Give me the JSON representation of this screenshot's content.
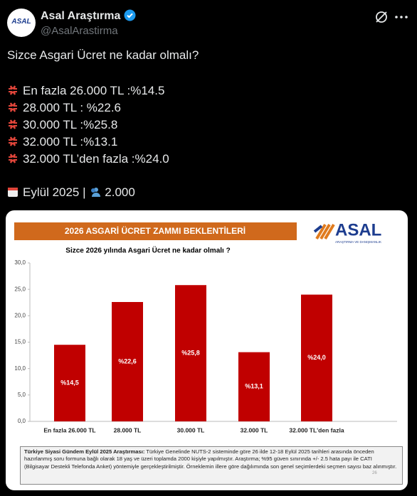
{
  "tweet": {
    "name": "Asal Araştırma",
    "handle": "@AsalArastirma",
    "avatar_text": "ASAL",
    "question": "Sizce Asgari Ücret ne kadar olmalı?",
    "lines": [
      "En fazla 26.000 TL :%14.5",
      "28.000 TL : %22.6",
      "30.000 TL :%25.8",
      "32.000 TL :%13.1",
      "32.000 TL’den fazla :%24.0"
    ],
    "date": "Eylül 2025 |",
    "sample": "2.000"
  },
  "logo": {
    "text": "ASAL",
    "tagline": "ARAŞTIRMA VE DANIŞMANLIK"
  },
  "chart_data": {
    "type": "bar",
    "title": "2026 ASGARİ ÜCRET ZAMMI BEKLENTİLERİ",
    "subtitle": "Sizce 2026 yılında Asgari Ücret ne kadar olmalı ?",
    "categories": [
      "En fazla 26.000 TL",
      "28.000 TL",
      "30.000 TL",
      "32.000 TL",
      "32.000 TL'den fazla"
    ],
    "values": [
      14.5,
      22.6,
      25.8,
      13.1,
      24.0
    ],
    "value_labels": [
      "%14,5",
      "%22,6",
      "%25,8",
      "%13,1",
      "%24,0"
    ],
    "color": "#c00000",
    "ylim": [
      0,
      30
    ],
    "yticks": [
      {
        "value": 0,
        "label": "0,0"
      },
      {
        "value": 5,
        "label": "5,0"
      },
      {
        "value": 10,
        "label": "10,0"
      },
      {
        "value": 15,
        "label": "15,0"
      },
      {
        "value": 20,
        "label": "20,0"
      },
      {
        "value": 25,
        "label": "25,0"
      },
      {
        "value": 30,
        "label": "30,0"
      }
    ],
    "grid": false
  },
  "note": {
    "heading": "Türkiye Siyasi Gündem Eylül 2025 Araştırması:",
    "text": "Türkiye Genelinde NUTS-2 sisteminde göre 26 ilde 12-18 Eylül 2025 tarihleri arasında önceden hazırlanmış soru formuna bağlı olarak 18 yaş ve üzeri toplamda 2000 kişiyle yapılmıştır. Araştırma; %95 güven sınırında +/- 2.5 hata payı ile CATI (Bilgisayar Destekli Telefonda Anket) yöntemiyle gerçekleştirilmiştir. Örneklemin illere göre dağılımında son genel seçimlerdeki seçmen sayısı baz alınmıştır.",
    "page": "26"
  }
}
